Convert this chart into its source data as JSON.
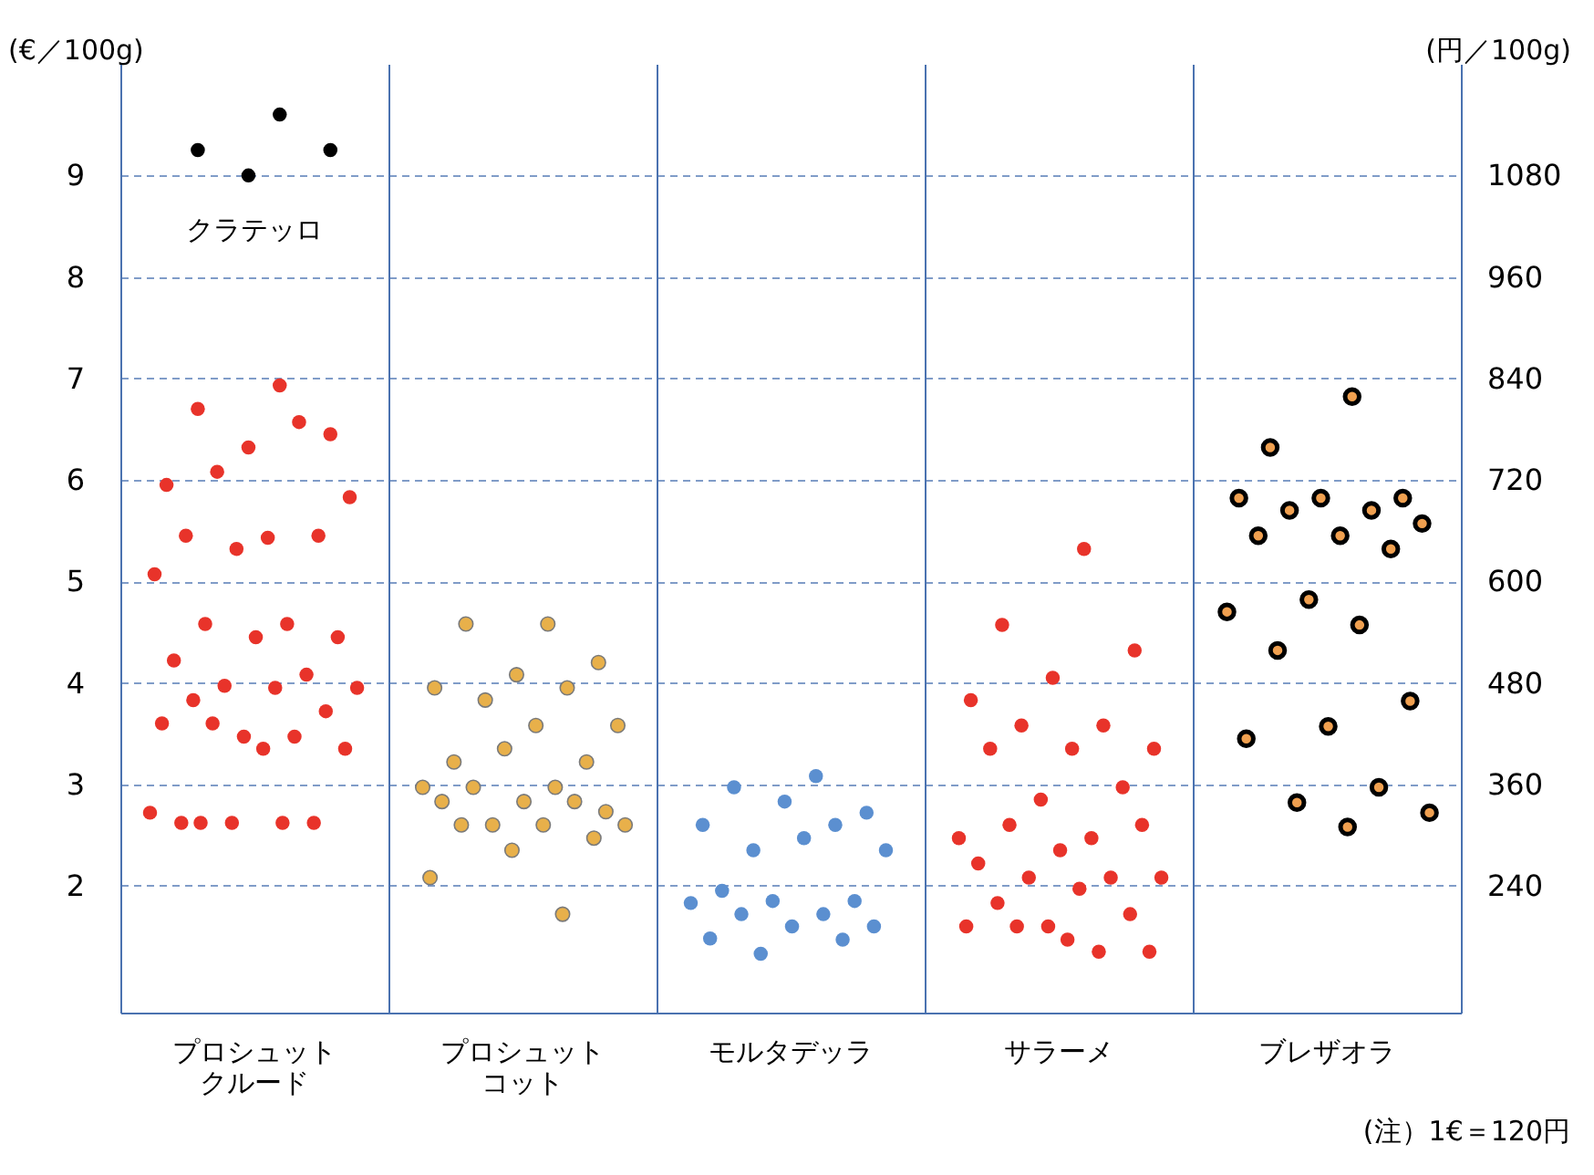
{
  "chart_data": {
    "type": "scatter",
    "ylabel": "(€／100g)",
    "y2label": "(円／100g)",
    "categories": [
      "プロシュットクルード",
      "プロシュットコット",
      "モルタデッラ",
      "サラーメ",
      "ブレザオラ"
    ],
    "ylim": [
      0.75,
      10.1
    ],
    "yticks": [
      2,
      3,
      4,
      5,
      6,
      7,
      8,
      9
    ],
    "y2lim": [
      90,
      1212
    ],
    "y2ticks": [
      240,
      360,
      480,
      600,
      720,
      840,
      960,
      1080
    ],
    "grid": "y",
    "marker": "circle",
    "series": [
      {
        "color": "#e8332a",
        "x": [
          "プロシュットクルード",
          "プロシュットクルード",
          "プロシュットクルード",
          "プロシュットクルード",
          "プロシュットクルード",
          "プロシュットクルード",
          "プロシュットクルード",
          "プロシュットクルード",
          "プロシュットクルード",
          "プロシュットクルード",
          "プロシュットクルード",
          "プロシュットクルード",
          "プロシュットクルード",
          "プロシュットクルード",
          "プロシュットクルード",
          "プロシュットクルード",
          "プロシュットクルード",
          "プロシュットクルード",
          "プロシュットクルード",
          "プロシュットクルード",
          "プロシュットクルード",
          "プロシュットクルード",
          "プロシュットクルード",
          "プロシュットクルード",
          "プロシュットクルード",
          "プロシュットクルード",
          "プロシュットクルード",
          "プロシュットクルード",
          "プロシュットクルード",
          "プロシュットクルード",
          "プロシュットクルード",
          "プロシュットクルード",
          "プロシュットクルード",
          "プロシュットクルード",
          "プロシュットクルード",
          "プロシュットクルード"
        ],
        "values": [
          6.93,
          6.7,
          6.45,
          6.32,
          5.95,
          6.57,
          6.08,
          5.83,
          5.43,
          5.45,
          5.45,
          5.32,
          5.07,
          4.58,
          4.58,
          4.45,
          4.45,
          4.22,
          4.08,
          3.97,
          3.95,
          3.95,
          3.83,
          3.72,
          3.47,
          3.6,
          3.47,
          3.6,
          3.35,
          3.35,
          2.62,
          2.62,
          2.62,
          2.72,
          2.62,
          2.62
        ]
      },
      {
        "name": "クラテッロ",
        "color": "#000000",
        "x": [
          "プロシュットクルード",
          "プロシュットクルード",
          "プロシュットクルード",
          "プロシュットクルード"
        ],
        "values": [
          9.6,
          9.25,
          9.25,
          9.0
        ]
      },
      {
        "color": "#e8b04a",
        "x": [
          "プロシュットコット",
          "プロシュットコット",
          "プロシュットコット",
          "プロシュットコット",
          "プロシュットコット",
          "プロシュットコット",
          "プロシュットコット",
          "プロシュットコット",
          "プロシュットコット",
          "プロシュットコット",
          "プロシュットコット",
          "プロシュットコット",
          "プロシュットコット",
          "プロシュットコット",
          "プロシュットコット",
          "プロシュットコット",
          "プロシュットコット",
          "プロシュットコット",
          "プロシュットコット",
          "プロシュットコット",
          "プロシュットコット",
          "プロシュットコット",
          "プロシュットコット",
          "プロシュットコット",
          "プロシュットコット",
          "プロシュットコット",
          "プロシュットコット"
        ],
        "values": [
          4.58,
          4.58,
          4.2,
          4.08,
          3.95,
          3.95,
          3.83,
          3.58,
          3.58,
          3.22,
          3.22,
          3.35,
          2.97,
          2.97,
          2.97,
          2.73,
          2.83,
          2.83,
          2.83,
          2.6,
          2.6,
          2.6,
          2.6,
          2.47,
          2.35,
          2.08,
          1.72
        ]
      },
      {
        "color": "#5b8fd0",
        "x": [
          "モルタデッラ",
          "モルタデッラ",
          "モルタデッラ",
          "モルタデッラ",
          "モルタデッラ",
          "モルタデッラ",
          "モルタデッラ",
          "モルタデッラ",
          "モルタデッラ",
          "モルタデッラ",
          "モルタデッラ",
          "モルタデッラ",
          "モルタデッラ",
          "モルタデッラ",
          "モルタデッラ",
          "モルタデッラ",
          "モルタデッラ",
          "モルタデッラ",
          "モルタデッラ",
          "モルタデッラ"
        ],
        "values": [
          3.08,
          2.97,
          2.72,
          2.83,
          2.6,
          2.6,
          2.35,
          2.35,
          2.47,
          1.95,
          1.85,
          1.85,
          1.83,
          1.72,
          1.72,
          1.6,
          1.6,
          1.48,
          1.47,
          1.33
        ]
      },
      {
        "color": "#e8332a",
        "x": [
          "サラーメ",
          "サラーメ",
          "サラーメ",
          "サラーメ",
          "サラーメ",
          "サラーメ",
          "サラーメ",
          "サラーメ",
          "サラーメ",
          "サラーメ",
          "サラーメ",
          "サラーメ",
          "サラーメ",
          "サラーメ",
          "サラーメ",
          "サラーメ",
          "サラーメ",
          "サラーメ",
          "サラーメ",
          "サラーメ",
          "サラーメ",
          "サラーメ",
          "サラーメ",
          "サラーメ",
          "サラーメ",
          "サラーメ",
          "サラーメ",
          "サラーメ",
          "サラーメ",
          "サラーメ"
        ],
        "values": [
          5.32,
          4.57,
          4.32,
          4.05,
          3.83,
          3.58,
          3.58,
          3.35,
          3.35,
          3.35,
          2.97,
          2.85,
          2.47,
          2.47,
          2.6,
          2.6,
          2.35,
          2.22,
          2.08,
          2.08,
          2.08,
          1.97,
          1.83,
          1.72,
          1.6,
          1.6,
          1.35,
          1.6,
          1.35,
          1.47
        ]
      },
      {
        "color": "#f0a050",
        "x": [
          "ブレザオラ",
          "ブレザオラ",
          "ブレザオラ",
          "ブレザオラ",
          "ブレザオラ",
          "ブレザオラ",
          "ブレザオラ",
          "ブレザオラ",
          "ブレザオラ",
          "ブレザオラ",
          "ブレザオラ",
          "ブレザオラ",
          "ブレザオラ",
          "ブレザオラ",
          "ブレザオラ",
          "ブレザオラ",
          "ブレザオラ",
          "ブレザオラ",
          "ブレザオラ",
          "ブレザオラ",
          "ブレザオラ",
          "ブレザオラ"
        ],
        "values": [
          6.82,
          6.32,
          5.82,
          5.82,
          5.82,
          5.7,
          5.7,
          5.57,
          5.45,
          5.45,
          5.32,
          4.82,
          4.7,
          4.57,
          4.32,
          3.82,
          3.57,
          3.45,
          2.97,
          2.82,
          2.72,
          2.58
        ]
      }
    ],
    "annotations": [
      "(注）1€＝120円"
    ]
  }
}
